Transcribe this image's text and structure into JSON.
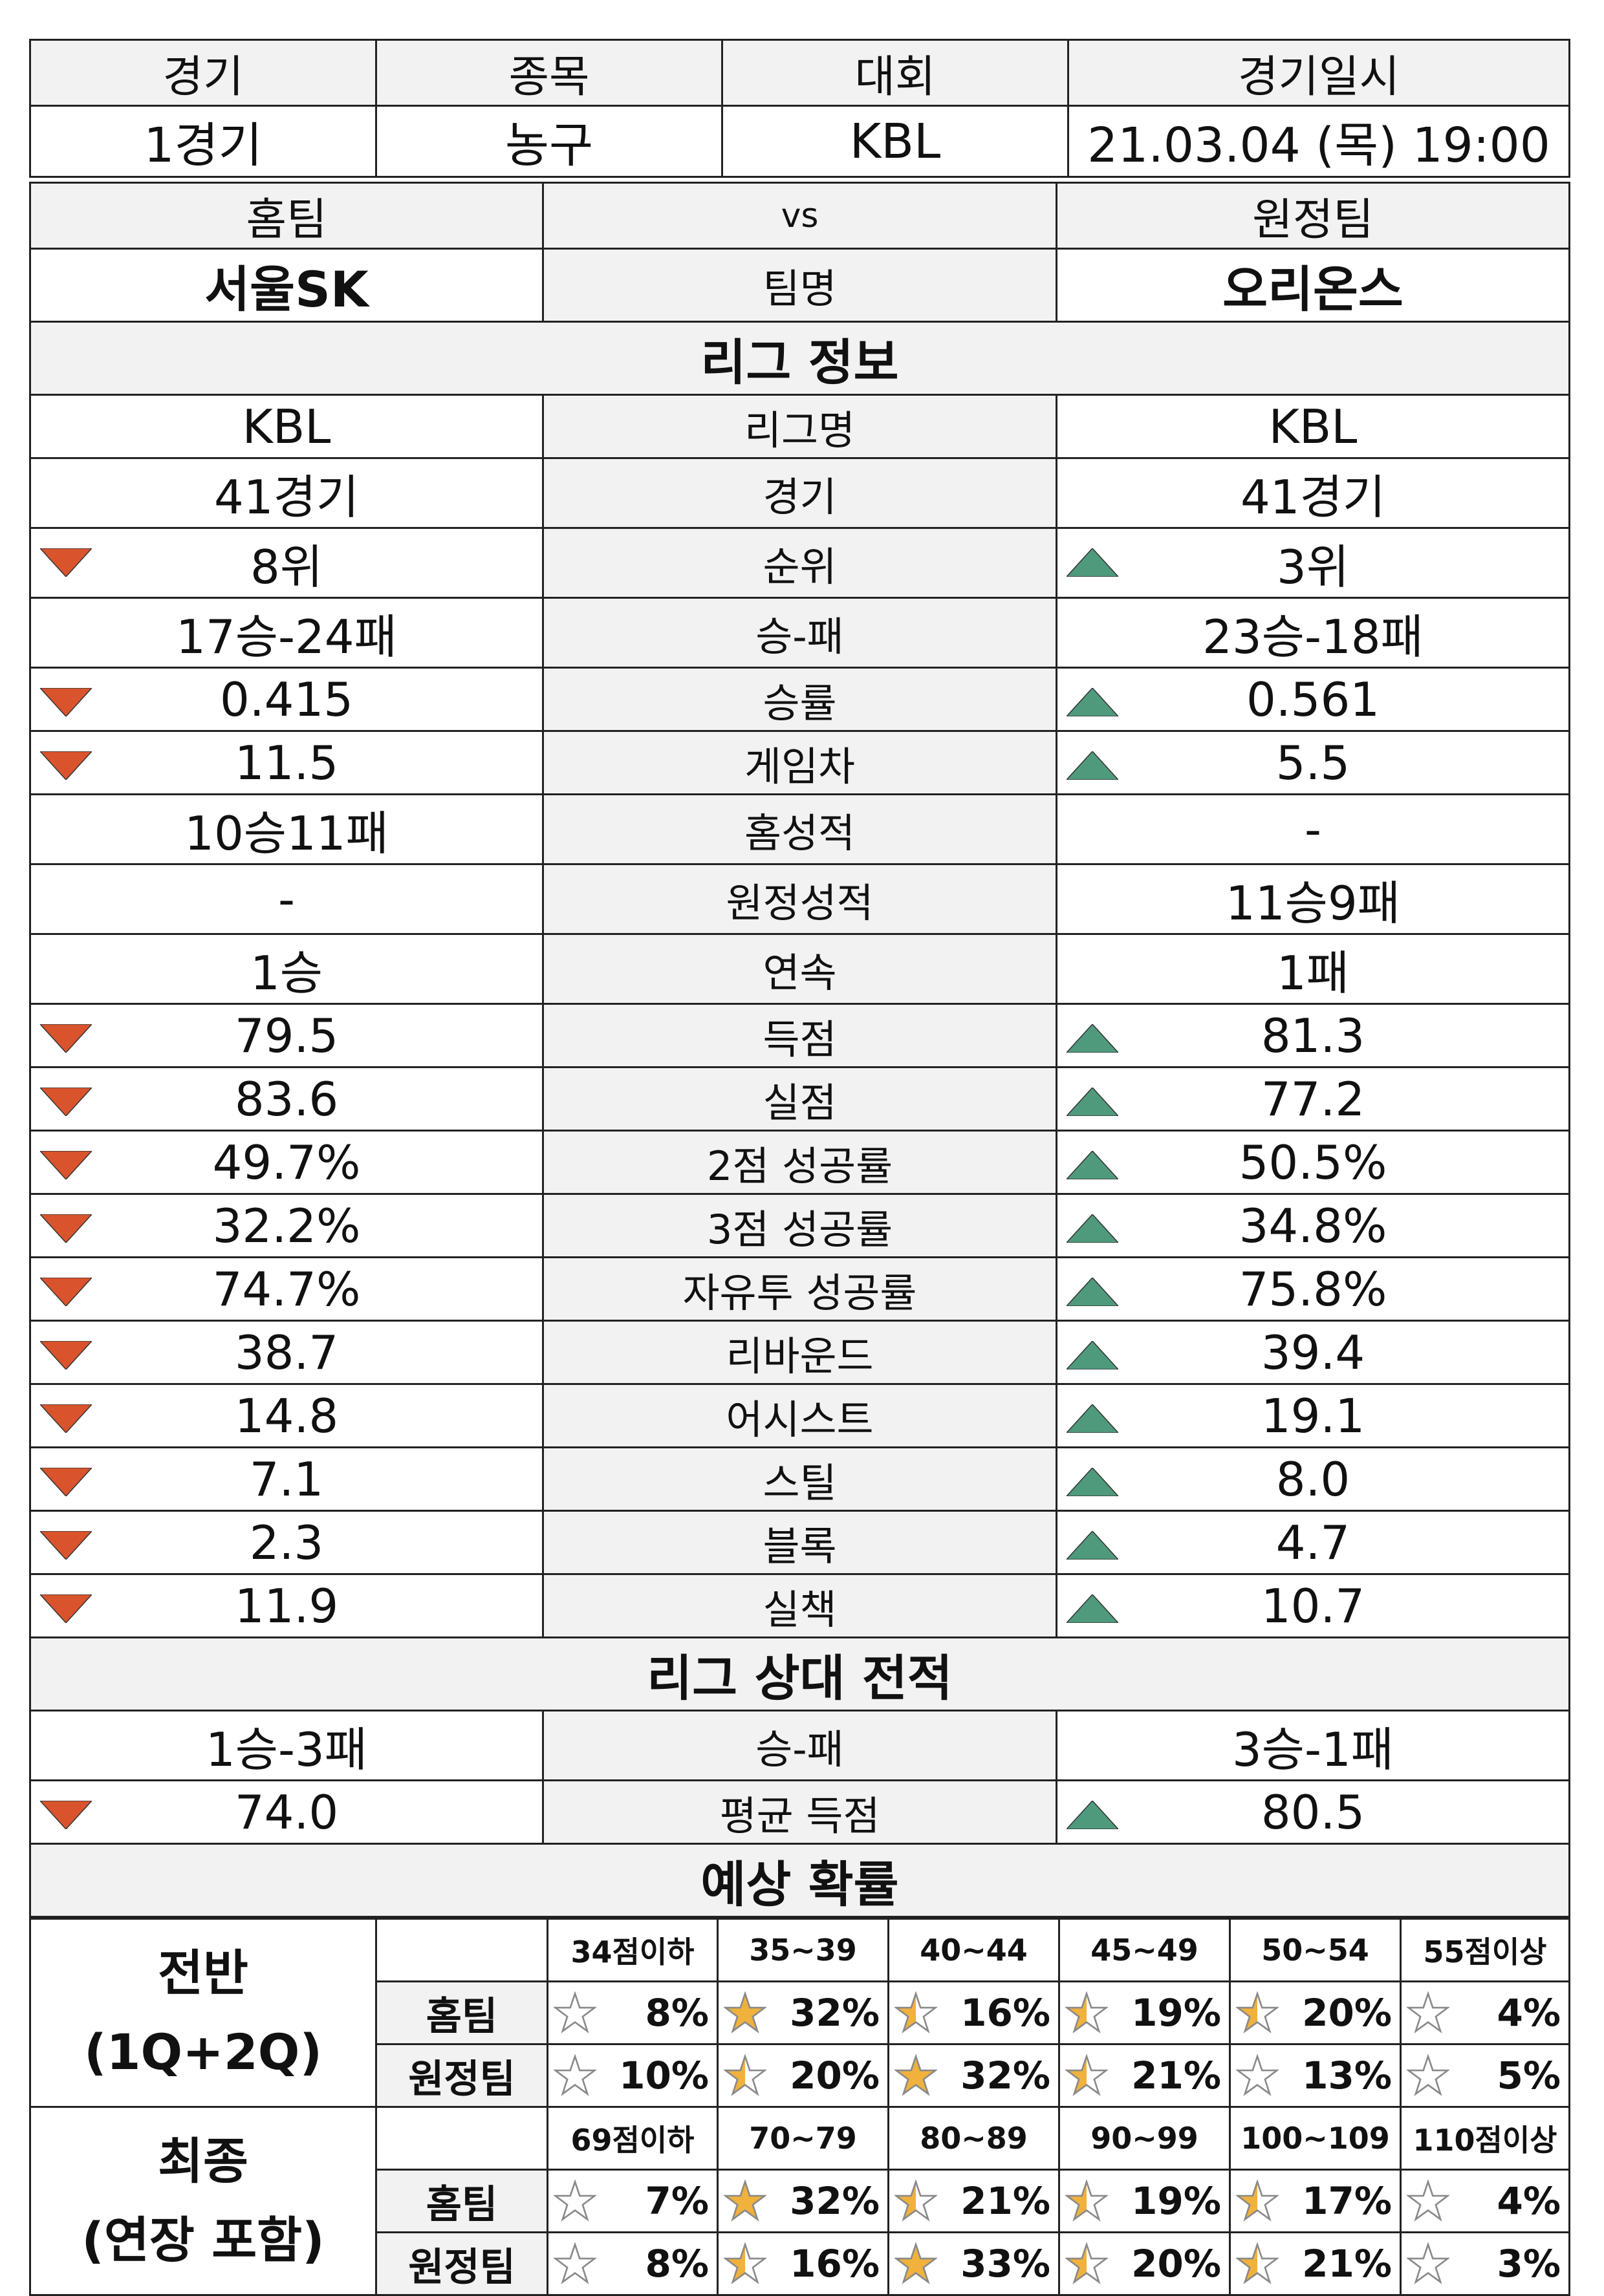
{
  "match": {
    "headers": [
      "경기",
      "종목",
      "대회",
      "경기일시"
    ],
    "values": [
      "1경기",
      "농구",
      "KBL",
      "21.03.04 (목) 19:00"
    ]
  },
  "teams": {
    "home_header": "홈팀",
    "vs": "vs",
    "away_header": "원정팀",
    "home_name": "서울SK",
    "name_label": "팀명",
    "away_name": "오리온스"
  },
  "league_section": "리그 정보",
  "league_rows": [
    {
      "home": "KBL",
      "label": "리그명",
      "away": "KBL",
      "arrow": ""
    },
    {
      "home": "41경기",
      "label": "경기",
      "away": "41경기",
      "arrow": ""
    },
    {
      "home": "8위",
      "label": "순위",
      "away": "3위",
      "arrow": "away"
    },
    {
      "home": "17승-24패",
      "label": "승-패",
      "away": "23승-18패",
      "arrow": ""
    },
    {
      "home": "0.415",
      "label": "승률",
      "away": "0.561",
      "arrow": "away"
    },
    {
      "home": "11.5",
      "label": "게임차",
      "away": "5.5",
      "arrow": "away"
    },
    {
      "home": "10승11패",
      "label": "홈성적",
      "away": "-",
      "arrow": ""
    },
    {
      "home": "-",
      "label": "원정성적",
      "away": "11승9패",
      "arrow": ""
    },
    {
      "home": "1승",
      "label": "연속",
      "away": "1패",
      "arrow": ""
    },
    {
      "home": "79.5",
      "label": "득점",
      "away": "81.3",
      "arrow": "away"
    },
    {
      "home": "83.6",
      "label": "실점",
      "away": "77.2",
      "arrow": "away"
    },
    {
      "home": "49.7%",
      "label": "2점 성공률",
      "away": "50.5%",
      "arrow": "away"
    },
    {
      "home": "32.2%",
      "label": "3점 성공률",
      "away": "34.8%",
      "arrow": "away"
    },
    {
      "home": "74.7%",
      "label": "자유투 성공률",
      "away": "75.8%",
      "arrow": "away"
    },
    {
      "home": "38.7",
      "label": "리바운드",
      "away": "39.4",
      "arrow": "away"
    },
    {
      "home": "14.8",
      "label": "어시스트",
      "away": "19.1",
      "arrow": "away"
    },
    {
      "home": "7.1",
      "label": "스틸",
      "away": "8.0",
      "arrow": "away"
    },
    {
      "home": "2.3",
      "label": "블록",
      "away": "4.7",
      "arrow": "away"
    },
    {
      "home": "11.9",
      "label": "실책",
      "away": "10.7",
      "arrow": "away"
    }
  ],
  "h2h_section": "리그 상대 전적",
  "h2h_rows": [
    {
      "home": "1승-3패",
      "label": "승-패",
      "away": "3승-1패",
      "arrow": ""
    },
    {
      "home": "74.0",
      "label": "평균 득점",
      "away": "80.5",
      "arrow": "away"
    }
  ],
  "prob_section": "예상 확률",
  "prob_blocks": [
    {
      "title_line1": "전반",
      "title_line2": "(1Q+2Q)",
      "ranges": [
        "34점이하",
        "35~39",
        "40~44",
        "45~49",
        "50~54",
        "55점이상"
      ],
      "rows": [
        {
          "who": "홈팀",
          "values": [
            "8%",
            "32%",
            "16%",
            "19%",
            "20%",
            "4%"
          ],
          "stars": [
            0,
            1,
            0.5,
            0.5,
            0.5,
            0
          ]
        },
        {
          "who": "원정팀",
          "values": [
            "10%",
            "20%",
            "32%",
            "21%",
            "13%",
            "5%"
          ],
          "stars": [
            0,
            0.5,
            1,
            0.5,
            0,
            0
          ]
        }
      ]
    },
    {
      "title_line1": "최종",
      "title_line2": "(연장 포함)",
      "ranges": [
        "69점이하",
        "70~79",
        "80~89",
        "90~99",
        "100~109",
        "110점이상"
      ],
      "rows": [
        {
          "who": "홈팀",
          "values": [
            "7%",
            "32%",
            "21%",
            "19%",
            "17%",
            "4%"
          ],
          "stars": [
            0,
            1,
            0.5,
            0.5,
            0.5,
            0
          ]
        },
        {
          "who": "원정팀",
          "values": [
            "8%",
            "16%",
            "33%",
            "20%",
            "21%",
            "3%"
          ],
          "stars": [
            0,
            0.5,
            1,
            0.5,
            0.5,
            0
          ]
        }
      ]
    }
  ],
  "colors": {
    "down_arrow": "#d9542c",
    "up_arrow": "#4f9a7c",
    "star_fill": "#f0b23c",
    "star_outline": "#8a8a8a",
    "shade": "#f2f2f2"
  }
}
